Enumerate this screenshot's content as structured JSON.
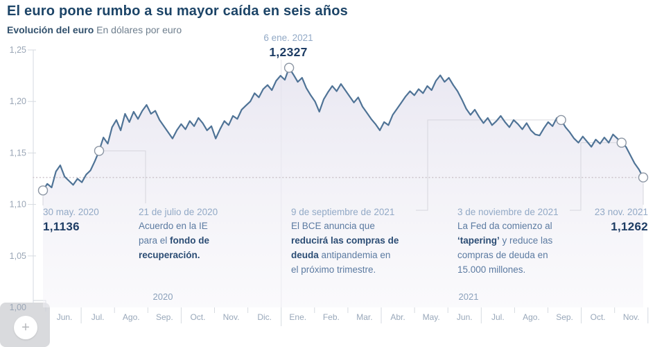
{
  "header": {
    "title": "El euro pone rumbo a su mayor caída en seis años",
    "subtitle_bold": "Evolución del euro",
    "subtitle_rest": "En dólares por euro"
  },
  "peak_callout": {
    "date": "6 ene. 2021",
    "value": "1,2327"
  },
  "annotations": [
    {
      "id": "a1",
      "date": "30 may. 2020",
      "value": "1,1136",
      "lines": []
    },
    {
      "id": "a2",
      "date": "21 de julio de 2020",
      "lines": [
        [
          {
            "t": "Acuerdo en la IE",
            "b": false
          }
        ],
        [
          {
            "t": "para el ",
            "b": false
          },
          {
            "t": "fondo de",
            "b": true
          }
        ],
        [
          {
            "t": "recuperación.",
            "b": true
          }
        ]
      ]
    },
    {
      "id": "a3",
      "date": "9 de septiembre de 2021",
      "lines": [
        [
          {
            "t": "El BCE anuncia que",
            "b": false
          }
        ],
        [
          {
            "t": "reducirá las compras de",
            "b": true
          }
        ],
        [
          {
            "t": "deuda",
            "b": true
          },
          {
            "t": " antipandemia en",
            "b": false
          }
        ],
        [
          {
            "t": "el próximo trimestre.",
            "b": false
          }
        ]
      ]
    },
    {
      "id": "a4",
      "date": "3 de noviembre de 2021",
      "lines": [
        [
          {
            "t": "La Fed da comienzo al",
            "b": false
          }
        ],
        [
          {
            "t": "‘tapering’",
            "b": true
          },
          {
            "t": " y reduce las",
            "b": false
          }
        ],
        [
          {
            "t": "compras de deuda en",
            "b": false
          }
        ],
        [
          {
            "t": "15.000 millones.",
            "b": false
          }
        ]
      ]
    },
    {
      "id": "a5",
      "date": "23 nov. 2021",
      "value": "1,1262",
      "lines": []
    }
  ],
  "zoom_button": {
    "label": "+"
  },
  "colors": {
    "title": "#1c4467",
    "line": "#4f7396",
    "area_top": "#e2e0ed",
    "area_bottom": "#f4f3f8",
    "date_label": "#92a9c6",
    "body_text": "#5b7aa1",
    "body_bold": "#2b4c74",
    "value_text": "#1d3c64",
    "axis": "#d6dae0",
    "dotted_reference": "#ccc4cb",
    "connector": "#d6d6dd",
    "marker_stroke": "#8b95a3"
  },
  "chart_data": {
    "type": "area",
    "title": "Evolución del euro",
    "ylabel": "En dólares por euro",
    "ylim": [
      1.0,
      1.25
    ],
    "grid": false,
    "legend": "none",
    "y_ticks": [
      {
        "label": "1,25",
        "value": 1.25
      },
      {
        "label": "1,20",
        "value": 1.2
      },
      {
        "label": "1,15",
        "value": 1.15
      },
      {
        "label": "1,10",
        "value": 1.1
      },
      {
        "label": "1,05",
        "value": 1.05
      },
      {
        "label": "1,00",
        "value": 1.0
      }
    ],
    "x_months": [
      "Jun.",
      "Jul.",
      "Ago.",
      "Sep.",
      "Oct.",
      "Nov.",
      "Dic.",
      "Ene.",
      "Feb.",
      "Mar.",
      "Abr.",
      "May.",
      "Jun.",
      "Jul.",
      "Ago.",
      "Sep.",
      "Oct.",
      "Nov."
    ],
    "years": [
      {
        "label": "2020"
      },
      {
        "label": "2021"
      }
    ],
    "reference_value": 1.1262,
    "key_points": [
      {
        "date": "30 may. 2020",
        "value": 1.1136
      },
      {
        "date": "21 de julio de 2020",
        "value": 1.152
      },
      {
        "date": "6 ene. 2021",
        "value": 1.2327
      },
      {
        "date": "9 de septiembre de 2021",
        "value": 1.182
      },
      {
        "date": "3 de noviembre de 2021",
        "value": 1.16
      },
      {
        "date": "23 nov. 2021",
        "value": 1.1262
      }
    ],
    "marker_indices": [
      0,
      13,
      57,
      120,
      134,
      139
    ],
    "series": [
      {
        "name": "EUR/USD",
        "values": [
          1.1136,
          1.12,
          1.1165,
          1.132,
          1.138,
          1.127,
          1.123,
          1.119,
          1.125,
          1.1215,
          1.129,
          1.133,
          1.142,
          1.152,
          1.165,
          1.159,
          1.175,
          1.182,
          1.172,
          1.188,
          1.18,
          1.19,
          1.183,
          1.191,
          1.1966,
          1.188,
          1.191,
          1.182,
          1.176,
          1.17,
          1.164,
          1.172,
          1.178,
          1.173,
          1.181,
          1.176,
          1.184,
          1.179,
          1.172,
          1.176,
          1.164,
          1.173,
          1.181,
          1.177,
          1.186,
          1.183,
          1.192,
          1.196,
          1.2,
          1.208,
          1.204,
          1.212,
          1.216,
          1.211,
          1.22,
          1.225,
          1.221,
          1.2327,
          1.226,
          1.219,
          1.223,
          1.213,
          1.206,
          1.2,
          1.19,
          1.202,
          1.209,
          1.215,
          1.21,
          1.217,
          1.211,
          1.205,
          1.199,
          1.204,
          1.195,
          1.189,
          1.183,
          1.178,
          1.172,
          1.18,
          1.177,
          1.187,
          1.193,
          1.199,
          1.205,
          1.21,
          1.206,
          1.212,
          1.208,
          1.215,
          1.211,
          1.22,
          1.2254,
          1.219,
          1.223,
          1.216,
          1.21,
          1.202,
          1.193,
          1.187,
          1.192,
          1.185,
          1.179,
          1.184,
          1.177,
          1.181,
          1.186,
          1.18,
          1.175,
          1.182,
          1.178,
          1.173,
          1.179,
          1.172,
          1.168,
          1.167,
          1.174,
          1.18,
          1.176,
          1.184,
          1.182,
          1.175,
          1.17,
          1.164,
          1.16,
          1.166,
          1.161,
          1.156,
          1.163,
          1.159,
          1.165,
          1.16,
          1.168,
          1.164,
          1.16,
          1.156,
          1.148,
          1.14,
          1.134,
          1.1262
        ]
      }
    ]
  }
}
